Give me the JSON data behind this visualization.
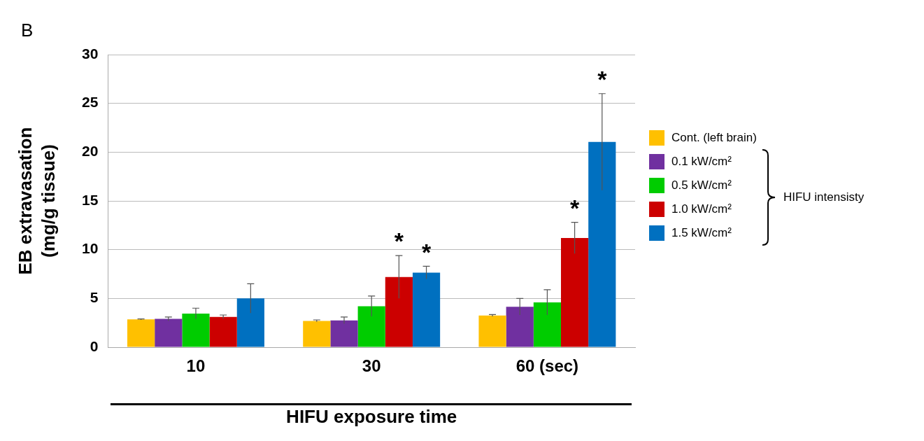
{
  "chart_data": {
    "type": "bar",
    "categories": [
      "10",
      "30",
      "60 (sec)"
    ],
    "xlabel": "HIFU exposure time",
    "ylabel": "EB extravasation\n(mg/g tissue)",
    "ylim": [
      0,
      30
    ],
    "yticks": [
      0,
      5,
      10,
      15,
      20,
      25,
      30
    ],
    "grid": "y",
    "legend": "right",
    "legend_title": "HIFU intensisty",
    "series": [
      {
        "name": "Cont. (left brain)",
        "color": "#ffc000",
        "values": [
          2.85,
          2.7,
          3.25
        ],
        "errors": [
          0.05,
          0.1,
          0.1
        ]
      },
      {
        "name": "0.1 kW/cm²",
        "color": "#7030a0",
        "values": [
          2.9,
          2.75,
          4.15
        ],
        "errors": [
          0.2,
          0.35,
          0.85
        ]
      },
      {
        "name": "0.5 kW/cm²",
        "color": "#00cc00",
        "values": [
          3.45,
          4.2,
          4.6
        ],
        "errors": [
          0.55,
          1.05,
          1.3
        ]
      },
      {
        "name": "1.0 kW/cm²",
        "color": "#cc0000",
        "values": [
          3.1,
          7.2,
          11.2
        ],
        "errors": [
          0.2,
          2.2,
          1.6
        ],
        "value_labels": [
          null,
          "*",
          "*"
        ]
      },
      {
        "name": "1.5 kW/cm²",
        "color": "#0070c0",
        "values": [
          5.0,
          7.65,
          21.05
        ],
        "errors": [
          1.5,
          0.65,
          4.95
        ],
        "value_labels": [
          null,
          "*",
          "*"
        ]
      }
    ],
    "annotations": [
      "B"
    ]
  }
}
